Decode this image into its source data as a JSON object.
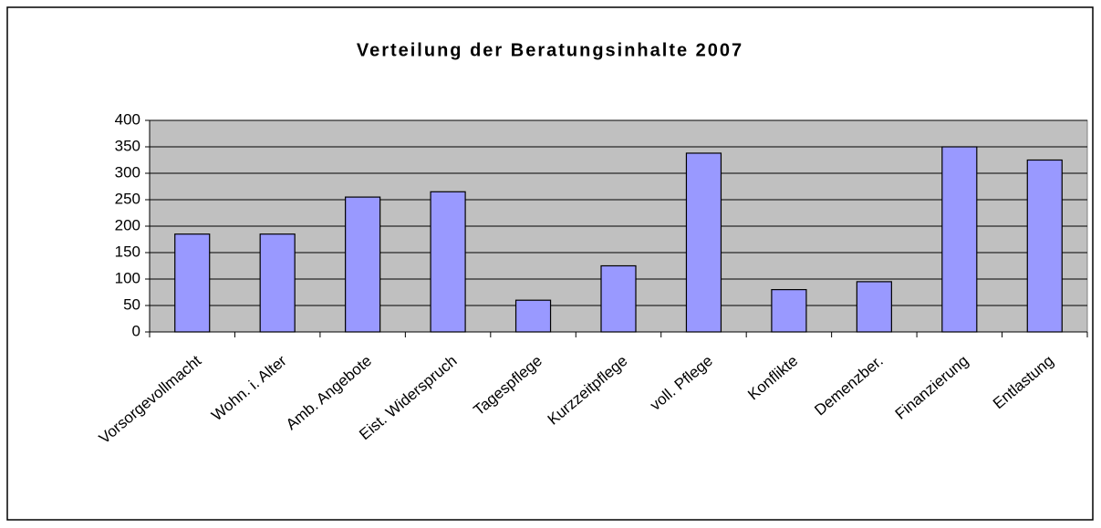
{
  "chart_data": {
    "type": "bar",
    "title": "Verteilung der Beratungsinhalte 2007",
    "categories": [
      "Vorsorgevollmacht",
      "Wohn. i. Alter",
      "Amb. Angebote",
      "Eist. Widerspruch",
      "Tagespflege",
      "Kurzzeitpflege",
      "voll. Pflege",
      "Konflikte",
      "Demenzber.",
      "Finanzierung",
      "Entlastung"
    ],
    "values": [
      185,
      185,
      255,
      265,
      60,
      125,
      338,
      80,
      95,
      350,
      325
    ],
    "color": "#9999ff",
    "ylim": [
      0,
      400
    ],
    "yticks": [
      0,
      50,
      100,
      150,
      200,
      250,
      300,
      350,
      400
    ],
    "grid": true
  }
}
